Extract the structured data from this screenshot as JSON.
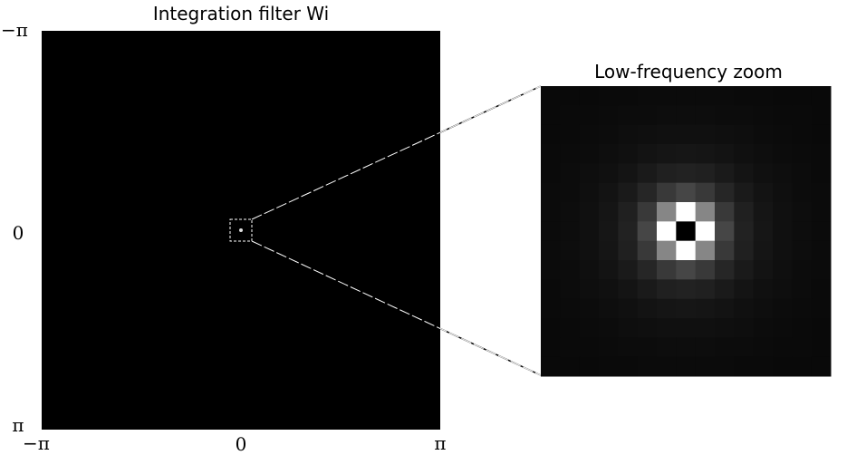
{
  "left_panel": {
    "title": "Integration filter Wi",
    "y_labels": [
      "−π",
      "0",
      "π"
    ],
    "x_labels": [
      "−π",
      "0",
      "π"
    ]
  },
  "zoom_panel": {
    "title": "Low-frequency zoom"
  }
}
